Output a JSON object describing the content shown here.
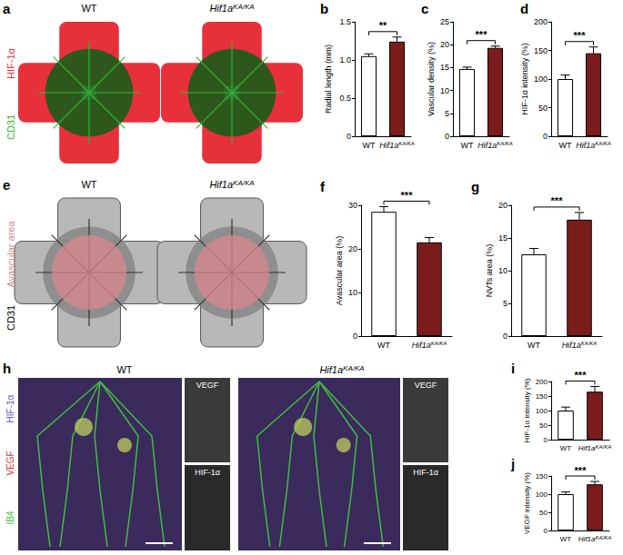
{
  "superscript": "KA/KA",
  "chart_data": [
    {
      "type": "bar",
      "label": "b",
      "y_label": "Radial length (mm)",
      "categories": [
        "WT",
        "Hif1aKA/KA"
      ],
      "values": [
        1.05,
        1.24
      ],
      "errors": [
        0.03,
        0.06
      ],
      "colors": [
        "#ffffff",
        "#7b1c1c"
      ],
      "ylim": [
        0,
        1.5
      ],
      "yticks": [
        0,
        0.5,
        {
          "value": 1,
          "label": "1.0"
        },
        1.5
      ],
      "grid": false,
      "annotations": [
        "**"
      ]
    },
    {
      "type": "bar",
      "label": "c",
      "y_label": "Vascular density (%)",
      "categories": [
        "WT",
        "Hif1aKA/KA"
      ],
      "values": [
        14.7,
        19.3
      ],
      "errors": [
        0.4,
        0.4
      ],
      "colors": [
        "#ffffff",
        "#7b1c1c"
      ],
      "ylim": [
        0,
        25
      ],
      "yticks": [
        0,
        5,
        10,
        15,
        20,
        25
      ],
      "grid": false,
      "annotations": [
        "***"
      ]
    },
    {
      "type": "bar",
      "label": "d",
      "y_label": "HIF-1α intensity (%)",
      "categories": [
        "WT",
        "Hif1aKA/KA"
      ],
      "values": [
        100,
        145
      ],
      "errors": [
        7,
        11
      ],
      "colors": [
        "#ffffff",
        "#7b1c1c"
      ],
      "ylim": [
        0,
        200
      ],
      "yticks": [
        0,
        50,
        100,
        150,
        200
      ],
      "grid": false,
      "annotations": [
        "***"
      ]
    },
    {
      "type": "bar",
      "label": "f",
      "y_label": "Avascular area (%)",
      "categories": [
        "WT",
        "Hif1aKA/KA"
      ],
      "values": [
        28.5,
        21.5
      ],
      "errors": [
        1.2,
        1.1
      ],
      "colors": [
        "#ffffff",
        "#7b1c1c"
      ],
      "ylim": [
        0,
        30
      ],
      "yticks": [
        0,
        10,
        20,
        30
      ],
      "grid": false,
      "annotations": [
        "***"
      ]
    },
    {
      "type": "bar",
      "label": "g",
      "y_label": "NVTs area (%)",
      "categories": [
        "WT",
        "Hif1aKA/KA"
      ],
      "values": [
        12.5,
        17.8
      ],
      "errors": [
        0.9,
        1.1
      ],
      "colors": [
        "#ffffff",
        "#7b1c1c"
      ],
      "ylim": [
        0,
        20
      ],
      "yticks": [
        0,
        5,
        10,
        15,
        20
      ],
      "grid": false,
      "annotations": [
        "***"
      ]
    },
    {
      "type": "bar",
      "label": "i",
      "y_label": "HIF-1α intensity (%)",
      "categories": [
        "WT",
        "Hif1aKA/KA"
      ],
      "values": [
        100,
        165
      ],
      "errors": [
        12,
        18
      ],
      "colors": [
        "#ffffff",
        "#7b1c1c"
      ],
      "ylim": [
        0,
        200
      ],
      "yticks": [
        0,
        50,
        100,
        150,
        200
      ],
      "grid": false,
      "annotations": [
        "***"
      ]
    },
    {
      "type": "bar",
      "label": "j",
      "y_label": "VEGF intensity (%)",
      "categories": [
        "WT",
        "Hif1aKA/KA"
      ],
      "values": [
        100,
        127
      ],
      "errors": [
        6,
        8
      ],
      "colors": [
        "#ffffff",
        "#7b1c1c"
      ],
      "ylim": [
        0,
        150
      ],
      "yticks": [
        0,
        50,
        100,
        150
      ],
      "grid": false,
      "annotations": [
        "***"
      ]
    }
  ],
  "images": [
    {
      "label": "a",
      "titles": [
        "WT",
        "Hif1aKA/KA"
      ],
      "stains": [
        {
          "text": "HIF-1α",
          "color": "#e8303a"
        },
        {
          "text": "CD31",
          "color": "#2fb82f"
        }
      ]
    },
    {
      "label": "e",
      "titles": [
        "WT",
        "Hif1aKA/KA"
      ],
      "stains": [
        {
          "text": "Avascular area",
          "color": "#d9878c"
        },
        {
          "text": "CD31",
          "color": "#000000"
        }
      ]
    },
    {
      "label": "h",
      "titles": [
        "WT",
        "Hif1aKA/KA"
      ],
      "stains": [
        {
          "text": "HIF-1α",
          "color": "#6a5acd"
        },
        {
          "text": "VEGF",
          "color": "#e03030"
        },
        {
          "text": "IB4",
          "color": "#3fbf3f"
        }
      ],
      "insets": [
        "VEGF",
        "HIF-1α"
      ]
    }
  ]
}
